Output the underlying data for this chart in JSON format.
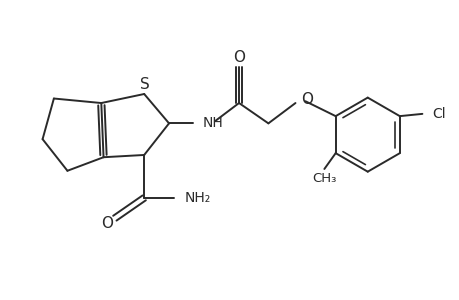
{
  "bg_color": "#ffffff",
  "line_color": "#2a2a2a",
  "line_width": 1.4,
  "font_size": 10,
  "figsize": [
    4.6,
    3.0
  ],
  "dpi": 100,
  "xlim": [
    0,
    10
  ],
  "ylim": [
    0,
    6.52
  ]
}
